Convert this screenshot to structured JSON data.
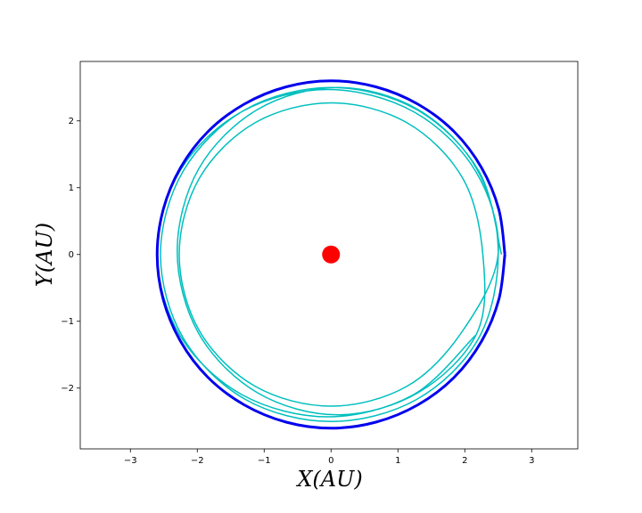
{
  "chart_data": {
    "type": "line",
    "xlabel": "X(AU)",
    "ylabel": "Y(AU)",
    "xlim": [
      -3.75,
      3.69
    ],
    "ylim": [
      -2.91,
      2.89
    ],
    "xticks": [
      {
        "value": -3,
        "label": "−3"
      },
      {
        "value": -2,
        "label": "−2"
      },
      {
        "value": -1,
        "label": "−1"
      },
      0,
      1,
      2,
      3
    ],
    "yticks": [
      {
        "value": -2,
        "label": "−2"
      },
      {
        "value": -1,
        "label": "−1"
      },
      0,
      1,
      2
    ],
    "series": [
      {
        "color": "#00bfbf",
        "mark": "line",
        "width": 1.5,
        "x": [
          2.55,
          2.21,
          1.28,
          0,
          -1.28,
          -2.21,
          -2.55,
          -2.21,
          -1.28,
          0,
          1.28,
          2.21,
          2.5,
          2.18,
          1.3,
          0.1,
          -1.1,
          -1.98,
          -2.3,
          -1.98,
          -1.1,
          0.1,
          1.3,
          2.18,
          2.27,
          1.97,
          1.14,
          0,
          -1.14,
          -1.97,
          -2.27,
          -1.97,
          -1.14,
          0,
          1.14,
          1.97,
          2.5,
          2.16,
          1.23,
          -0.05,
          -1.33,
          -2.26,
          -2.6,
          -2.26,
          -1.33,
          -0.05,
          1.23,
          2.16
        ],
        "y": [
          0,
          1.25,
          2.17,
          2.5,
          2.17,
          1.25,
          0,
          -1.25,
          -2.17,
          -2.5,
          -2.17,
          -1.25,
          0.05,
          1.28,
          2.17,
          2.5,
          2.17,
          1.28,
          0.05,
          -1.18,
          -2.07,
          -2.4,
          -2.07,
          -1.18,
          0,
          1.14,
          1.97,
          2.27,
          1.97,
          1.14,
          0,
          -1.14,
          -1.97,
          -2.27,
          -1.97,
          -1.14,
          0.02,
          1.25,
          2.14,
          2.47,
          2.14,
          1.25,
          0.02,
          -1.21,
          -2.1,
          -2.43,
          -2.1,
          -1.21
        ]
      },
      {
        "color": "#0000ee",
        "mark": "line",
        "width": 3,
        "x": [
          2.6,
          2.51,
          2.25,
          1.84,
          1.3,
          0.67,
          0,
          -0.67,
          -1.3,
          -1.84,
          -2.25,
          -2.51,
          -2.6,
          -2.51,
          -2.25,
          -1.84,
          -1.3,
          -0.67,
          0,
          0.67,
          1.3,
          1.84,
          2.25,
          2.51,
          2.6
        ],
        "y": [
          0,
          0.67,
          1.3,
          1.84,
          2.25,
          2.51,
          2.6,
          2.51,
          2.25,
          1.84,
          1.3,
          0.67,
          0,
          -0.67,
          -1.3,
          -1.84,
          -2.25,
          -2.51,
          -2.6,
          -2.51,
          -2.25,
          -1.84,
          -1.3,
          -0.67,
          0
        ]
      },
      {
        "color": "#ff0000",
        "mark": "point",
        "size": 10,
        "x": [
          0
        ],
        "y": [
          0
        ]
      }
    ]
  }
}
